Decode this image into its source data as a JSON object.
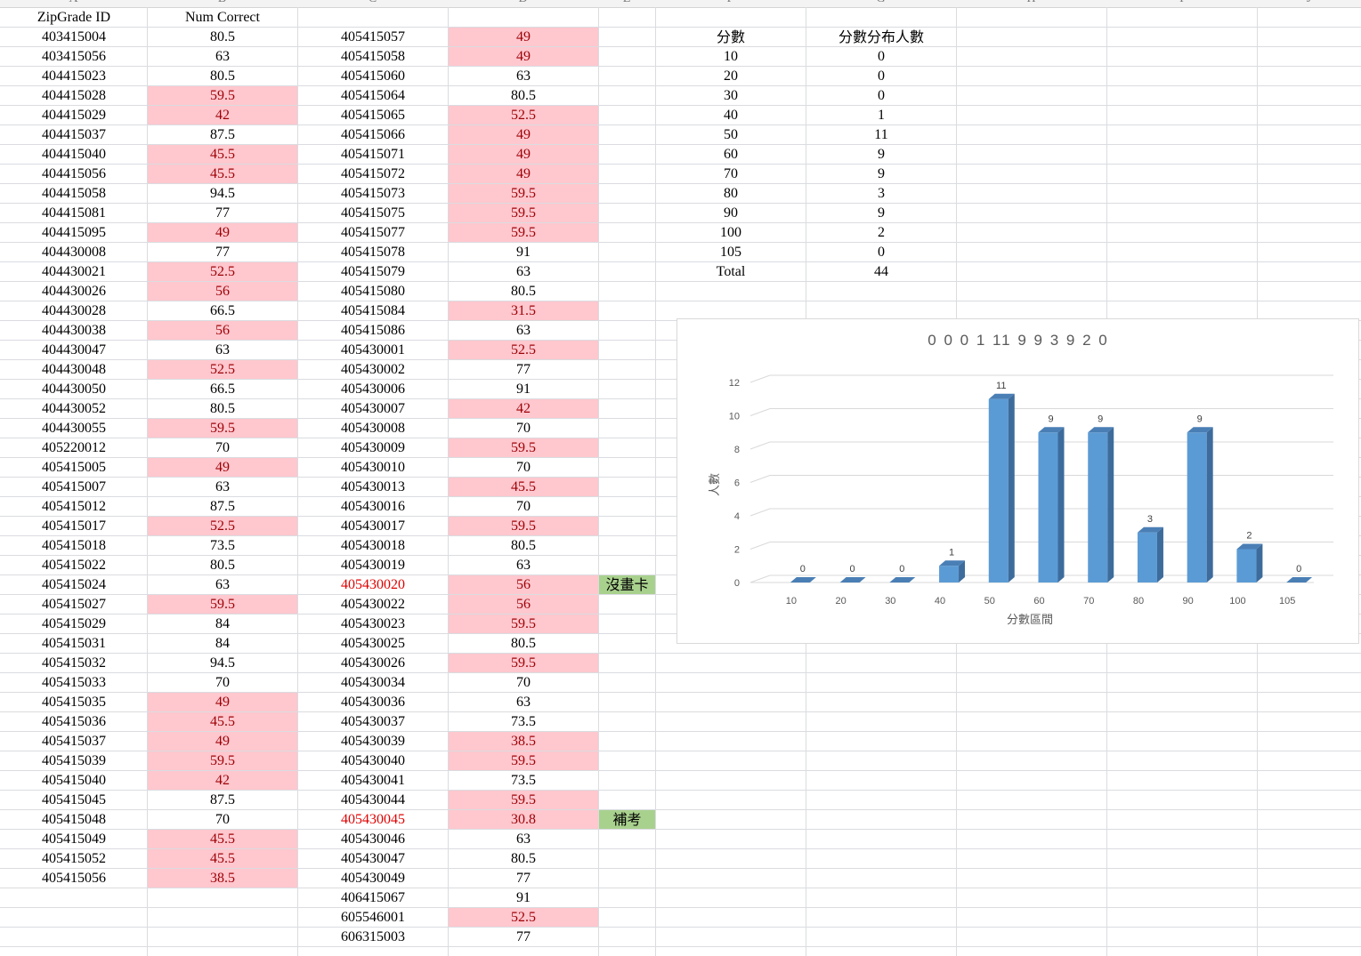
{
  "columns": {
    "letters": [
      "A",
      "B",
      "C",
      "D",
      "E",
      "F",
      "G",
      "H",
      "I",
      "J"
    ]
  },
  "headers": {
    "id": "ZipGrade ID",
    "score": "Num Correct"
  },
  "colA": [
    "403415004",
    "403415056",
    "404415023",
    "404415028",
    "404415029",
    "404415037",
    "404415040",
    "404415056",
    "404415058",
    "404415081",
    "404415095",
    "404430008",
    "404430021",
    "404430026",
    "404430028",
    "404430038",
    "404430047",
    "404430048",
    "404430050",
    "404430052",
    "404430055",
    "405220012",
    "405415005",
    "405415007",
    "405415012",
    "405415017",
    "405415018",
    "405415022",
    "405415024",
    "405415027",
    "405415029",
    "405415031",
    "405415032",
    "405415033",
    "405415035",
    "405415036",
    "405415037",
    "405415039",
    "405415040",
    "405415045",
    "405415048",
    "405415049",
    "405415052",
    "405415056"
  ],
  "colB": [
    "80.5",
    "63",
    "80.5",
    "59.5",
    "42",
    "87.5",
    "45.5",
    "45.5",
    "94.5",
    "77",
    "49",
    "77",
    "52.5",
    "56",
    "66.5",
    "56",
    "63",
    "52.5",
    "66.5",
    "80.5",
    "59.5",
    "70",
    "49",
    "63",
    "87.5",
    "52.5",
    "73.5",
    "80.5",
    "63",
    "59.5",
    "84",
    "84",
    "94.5",
    "70",
    "49",
    "45.5",
    "49",
    "59.5",
    "42",
    "87.5",
    "70",
    "45.5",
    "45.5",
    "38.5"
  ],
  "colC": [
    "405415057",
    "405415058",
    "405415060",
    "405415064",
    "405415065",
    "405415066",
    "405415071",
    "405415072",
    "405415073",
    "405415075",
    "405415077",
    "405415078",
    "405415079",
    "405415080",
    "405415084",
    "405415086",
    "405430001",
    "405430002",
    "405430006",
    "405430007",
    "405430008",
    "405430009",
    "405430010",
    "405430013",
    "405430016",
    "405430017",
    "405430018",
    "405430019",
    "405430020",
    "405430022",
    "405430023",
    "405430025",
    "405430026",
    "405430034",
    "405430036",
    "405430037",
    "405430039",
    "405430040",
    "405430041",
    "405430044",
    "405430045",
    "405430046",
    "405430047",
    "405430049",
    "406415067",
    "605546001",
    "606315003"
  ],
  "colD": [
    "49",
    "49",
    "63",
    "80.5",
    "52.5",
    "49",
    "49",
    "49",
    "59.5",
    "59.5",
    "59.5",
    "91",
    "63",
    "80.5",
    "31.5",
    "63",
    "52.5",
    "77",
    "91",
    "42",
    "70",
    "59.5",
    "70",
    "45.5",
    "70",
    "59.5",
    "80.5",
    "63",
    "56",
    "56",
    "59.5",
    "80.5",
    "59.5",
    "70",
    "63",
    "73.5",
    "38.5",
    "59.5",
    "73.5",
    "59.5",
    "30.8",
    "63",
    "80.5",
    "77",
    "91",
    "52.5",
    "77"
  ],
  "redIdRows": [
    28,
    40
  ],
  "notes": [
    {
      "row": 28,
      "text": "沒畫卡"
    },
    {
      "row": 40,
      "text": "補考"
    }
  ],
  "freq": {
    "header1": "分數",
    "header2": "分數分布人數",
    "rows": [
      {
        "bin": "10",
        "count": "0"
      },
      {
        "bin": "20",
        "count": "0"
      },
      {
        "bin": "30",
        "count": "0"
      },
      {
        "bin": "40",
        "count": "1"
      },
      {
        "bin": "50",
        "count": "11"
      },
      {
        "bin": "60",
        "count": "9"
      },
      {
        "bin": "70",
        "count": "9"
      },
      {
        "bin": "80",
        "count": "3"
      },
      {
        "bin": "90",
        "count": "9"
      },
      {
        "bin": "100",
        "count": "2"
      },
      {
        "bin": "105",
        "count": "0"
      },
      {
        "bin": "Total",
        "count": "44"
      }
    ]
  },
  "chart_data": {
    "type": "bar",
    "title": "0 0 0 1 11 9 9 3 9 2 0",
    "categories": [
      "10",
      "20",
      "30",
      "40",
      "50",
      "60",
      "70",
      "80",
      "90",
      "100",
      "105"
    ],
    "values": [
      0,
      0,
      0,
      1,
      11,
      9,
      9,
      3,
      9,
      2,
      0
    ],
    "xlabel": "分數區間",
    "ylabel": "人數",
    "ylim": [
      0,
      12
    ],
    "yticks": [
      0,
      2,
      4,
      6,
      8,
      10,
      12
    ],
    "grid": true,
    "colors": {
      "bar": "#5b9bd5",
      "barTop": "#4a7fb5",
      "barSide": "#3d6c9c"
    }
  }
}
